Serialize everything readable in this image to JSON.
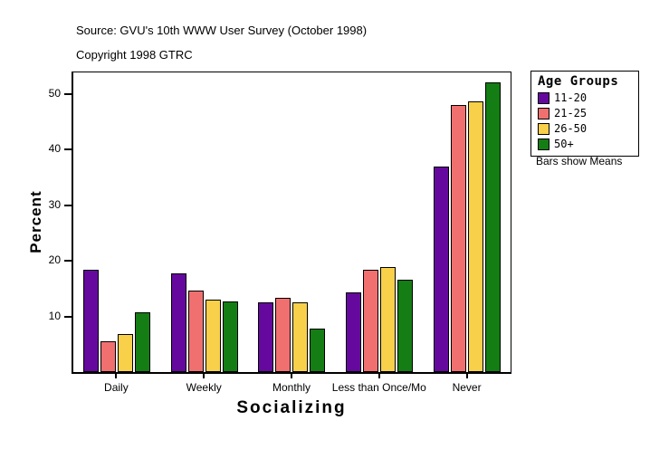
{
  "header": {
    "source": "Source: GVU's 10th WWW User Survey (October 1998)",
    "copyright": "Copyright 1998 GTRC"
  },
  "chart_data": {
    "type": "bar",
    "title": "",
    "xlabel": "Socializing",
    "ylabel": "Percent",
    "categories": [
      "Daily",
      "Weekly",
      "Monthly",
      "Less than Once/Mo",
      "Never"
    ],
    "series": [
      {
        "name": "11-20",
        "color": "#65099E",
        "values": [
          18.5,
          17.8,
          12.6,
          14.3,
          37.0
        ]
      },
      {
        "name": "21-25",
        "color": "#F07070",
        "values": [
          5.6,
          14.7,
          13.3,
          18.5,
          48.2
        ]
      },
      {
        "name": "26-50",
        "color": "#F8D04A",
        "values": [
          6.8,
          13.0,
          12.5,
          19.0,
          48.8
        ]
      },
      {
        "name": "50+",
        "color": "#147D14",
        "values": [
          10.7,
          12.8,
          7.8,
          16.7,
          52.2
        ]
      }
    ],
    "yticks": [
      10,
      20,
      30,
      40,
      50
    ],
    "ylim": [
      0,
      54
    ],
    "grid": false,
    "legend": {
      "title": "Age Groups",
      "position": "right-outside",
      "note": "Bars show Means"
    }
  }
}
